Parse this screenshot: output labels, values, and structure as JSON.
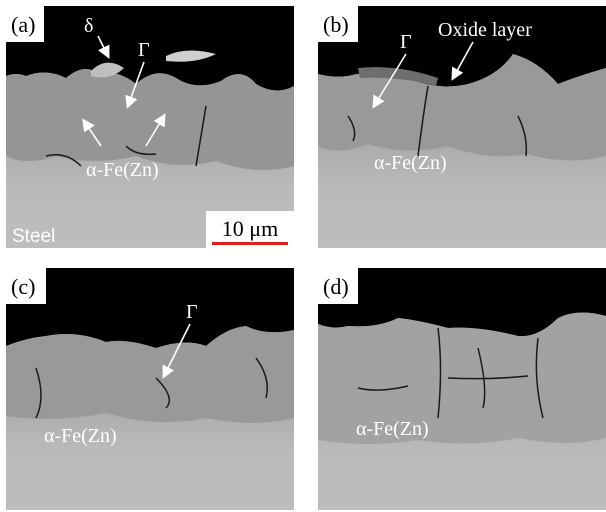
{
  "panels": [
    {
      "label": "(a)",
      "annotations": [
        "δ",
        "Γ",
        "α-Fe(Zn)",
        "Steel"
      ],
      "scale_bar": "10 μm"
    },
    {
      "label": "(b)",
      "annotations": [
        "Γ",
        "Oxide layer",
        "α-Fe(Zn)"
      ]
    },
    {
      "label": "(c)",
      "annotations": [
        "Γ",
        "α-Fe(Zn)"
      ]
    },
    {
      "label": "(d)",
      "annotations": [
        "α-Fe(Zn)"
      ]
    }
  ]
}
